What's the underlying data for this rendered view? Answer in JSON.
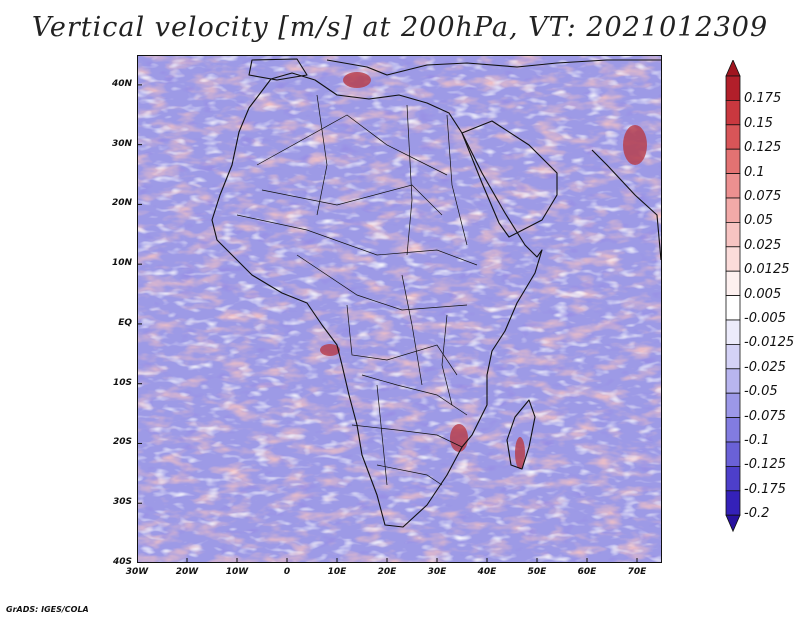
{
  "title": "Vertical velocity [m/s] at 200hPa, VT: 2021012309",
  "footer": "GrADS: IGES/COLA",
  "map": {
    "projection": "lat-lon",
    "lon_range": [
      -30,
      75
    ],
    "lat_range": [
      -40,
      45
    ],
    "y_ticks": [
      {
        "lat": 40,
        "label": "40N"
      },
      {
        "lat": 30,
        "label": "30N"
      },
      {
        "lat": 20,
        "label": "20N"
      },
      {
        "lat": 10,
        "label": "10N"
      },
      {
        "lat": 0,
        "label": "EQ"
      },
      {
        "lat": -10,
        "label": "10S"
      },
      {
        "lat": -20,
        "label": "20S"
      },
      {
        "lat": -30,
        "label": "30S"
      },
      {
        "lat": -40,
        "label": "40S"
      }
    ],
    "x_ticks": [
      {
        "lon": -30,
        "label": "30W"
      },
      {
        "lon": -20,
        "label": "20W"
      },
      {
        "lon": -10,
        "label": "10W"
      },
      {
        "lon": 0,
        "label": "0"
      },
      {
        "lon": 10,
        "label": "10E"
      },
      {
        "lon": 20,
        "label": "20E"
      },
      {
        "lon": 30,
        "label": "30E"
      },
      {
        "lon": 40,
        "label": "40E"
      },
      {
        "lon": 50,
        "label": "50E"
      },
      {
        "lon": 60,
        "label": "60E"
      },
      {
        "lon": 70,
        "label": "70E"
      }
    ]
  },
  "colorbar": {
    "levels": [
      {
        "label": "0.175",
        "color": "#b21f2a"
      },
      {
        "label": "0.15",
        "color": "#c9383f"
      },
      {
        "label": "0.125",
        "color": "#d85558"
      },
      {
        "label": "0.1",
        "color": "#e37272"
      },
      {
        "label": "0.075",
        "color": "#ec9090"
      },
      {
        "label": "0.05",
        "color": "#f2aaa8"
      },
      {
        "label": "0.025",
        "color": "#f7c4c2"
      },
      {
        "label": "0.0125",
        "color": "#fbdcda"
      },
      {
        "label": "0.005",
        "color": "#fdf0ef"
      },
      {
        "label": "-0.005",
        "color": "#ffffff"
      },
      {
        "label": "-0.0125",
        "color": "#ecebfb"
      },
      {
        "label": "-0.025",
        "color": "#d4d2f6"
      },
      {
        "label": "-0.05",
        "color": "#b8b5ef"
      },
      {
        "label": "-0.075",
        "color": "#9c98e8"
      },
      {
        "label": "-0.1",
        "color": "#827ce0"
      },
      {
        "label": "-0.125",
        "color": "#6a61d7"
      },
      {
        "label": "-0.175",
        "color": "#4d3fca"
      },
      {
        "label": "-0.2",
        "color": "#3421b9"
      }
    ],
    "tip_top_color": "#a0151f",
    "tip_bottom_color": "#28129f"
  },
  "colors": {
    "bg_blue": "#9d9ae6",
    "bg_red": "#ee9e9c",
    "coast": "#111111"
  }
}
